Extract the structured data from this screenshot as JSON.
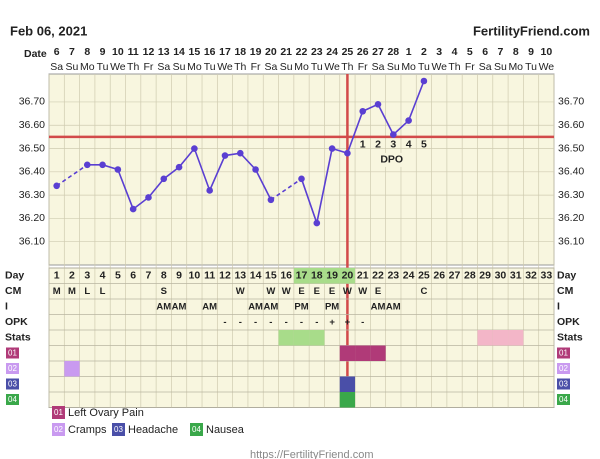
{
  "header": {
    "date": "Feb 06, 2021",
    "site": "FertilityFriend.com"
  },
  "chart_data": {
    "type": "line",
    "axis_label": "Date",
    "categories": [
      6,
      7,
      8,
      9,
      10,
      11,
      12,
      13,
      14,
      15,
      16,
      17,
      18,
      19,
      20,
      21,
      22,
      23,
      24,
      25,
      26,
      27,
      28,
      1,
      2,
      3,
      4,
      5,
      6,
      7,
      8,
      9,
      10
    ],
    "weekdays": [
      "Sa",
      "Su",
      "Mo",
      "Tu",
      "We",
      "Th",
      "Fr",
      "Sa",
      "Su",
      "Mo",
      "Tu",
      "We",
      "Th",
      "Fr",
      "Sa",
      "Su",
      "Mo",
      "Tu",
      "We",
      "Th",
      "Fr",
      "Sa",
      "Su",
      "Mo",
      "Tu",
      "We",
      "Th",
      "Fr",
      "Sa",
      "Su",
      "Mo",
      "Tu",
      "We"
    ],
    "values": [
      36.34,
      null,
      36.43,
      36.43,
      36.41,
      36.24,
      36.29,
      36.37,
      36.42,
      36.5,
      36.32,
      36.47,
      36.48,
      36.41,
      36.28,
      null,
      36.37,
      36.18,
      36.5,
      36.48,
      36.66,
      36.69,
      36.56,
      36.62,
      36.79,
      null,
      null,
      null,
      null,
      null,
      null,
      null,
      null
    ],
    "color": "#5a3fd2",
    "line_color": "#d24a4a",
    "coverline": 36.55,
    "ovulation_day": 20,
    "dpo": [
      null,
      null,
      null,
      null,
      null,
      null,
      null,
      null,
      null,
      null,
      null,
      null,
      null,
      null,
      null,
      null,
      null,
      null,
      null,
      null,
      1,
      2,
      3,
      4,
      5,
      null,
      null,
      null,
      null,
      null,
      null,
      null,
      null
    ],
    "dpo_label": "DPO",
    "ylim": [
      36.0,
      36.82
    ],
    "yticks": [
      {
        "value": 36.1,
        "label": "36.10"
      },
      {
        "value": 36.2,
        "label": "36.20"
      },
      {
        "value": 36.3,
        "label": "36.30"
      },
      {
        "value": 36.4,
        "label": "36.40"
      },
      {
        "value": 36.5,
        "label": "36.50"
      },
      {
        "value": 36.6,
        "label": "36.60"
      },
      {
        "value": 36.7,
        "label": "36.70"
      }
    ],
    "grid": true
  },
  "table": {
    "row_labels": [
      "Day",
      "CM",
      "I",
      "OPK",
      "Stats"
    ],
    "days": [
      1,
      2,
      3,
      4,
      5,
      6,
      7,
      8,
      9,
      10,
      11,
      12,
      13,
      14,
      15,
      16,
      17,
      18,
      19,
      20,
      21,
      22,
      23,
      24,
      25,
      26,
      27,
      28,
      29,
      30,
      31,
      32,
      33
    ],
    "fertile_days": [
      17,
      18,
      19,
      20
    ],
    "fertile_color": "#a8dc8a",
    "cm": [
      "M",
      "M",
      "L",
      "L",
      null,
      null,
      null,
      "S",
      null,
      null,
      null,
      null,
      "W",
      null,
      "W",
      "W",
      "E",
      "E",
      "E",
      "W",
      "W",
      "E",
      null,
      null,
      "C",
      null,
      null,
      null,
      null,
      null,
      null,
      null,
      null
    ],
    "intercourse": [
      null,
      null,
      null,
      null,
      null,
      null,
      null,
      "AM",
      "AM",
      null,
      "AM",
      null,
      null,
      "AM",
      "AM",
      null,
      "PM",
      null,
      "PM",
      null,
      null,
      "AM",
      "AM",
      null,
      null,
      null,
      null,
      null,
      null,
      null,
      null,
      null,
      null
    ],
    "opk": [
      null,
      null,
      null,
      null,
      null,
      null,
      null,
      null,
      null,
      null,
      null,
      "-",
      "-",
      "-",
      "-",
      "-",
      "-",
      "-",
      "+",
      "+",
      "-",
      null,
      null,
      null,
      null,
      null,
      null,
      null,
      null,
      null,
      null,
      null,
      null
    ],
    "stats": [
      {
        "color": "#a8dc8a",
        "days": [
          16,
          17,
          18
        ]
      },
      {
        "color": "#f3b6c8",
        "days": [
          29,
          30,
          31
        ]
      }
    ],
    "symptoms": [
      {
        "code": "01",
        "name": "Left Ovary Pain",
        "color": "#b03a78",
        "days": [
          20,
          21,
          22
        ]
      },
      {
        "code": "02",
        "name": "Cramps",
        "color": "#c99af0",
        "days": [
          2
        ]
      },
      {
        "code": "03",
        "name": "Headache",
        "color": "#4a4fa8",
        "days": [
          20
        ]
      },
      {
        "code": "04",
        "name": "Nausea",
        "color": "#3aa84a",
        "days": [
          20
        ]
      }
    ]
  },
  "footer": "https://FertilityFriend.com"
}
